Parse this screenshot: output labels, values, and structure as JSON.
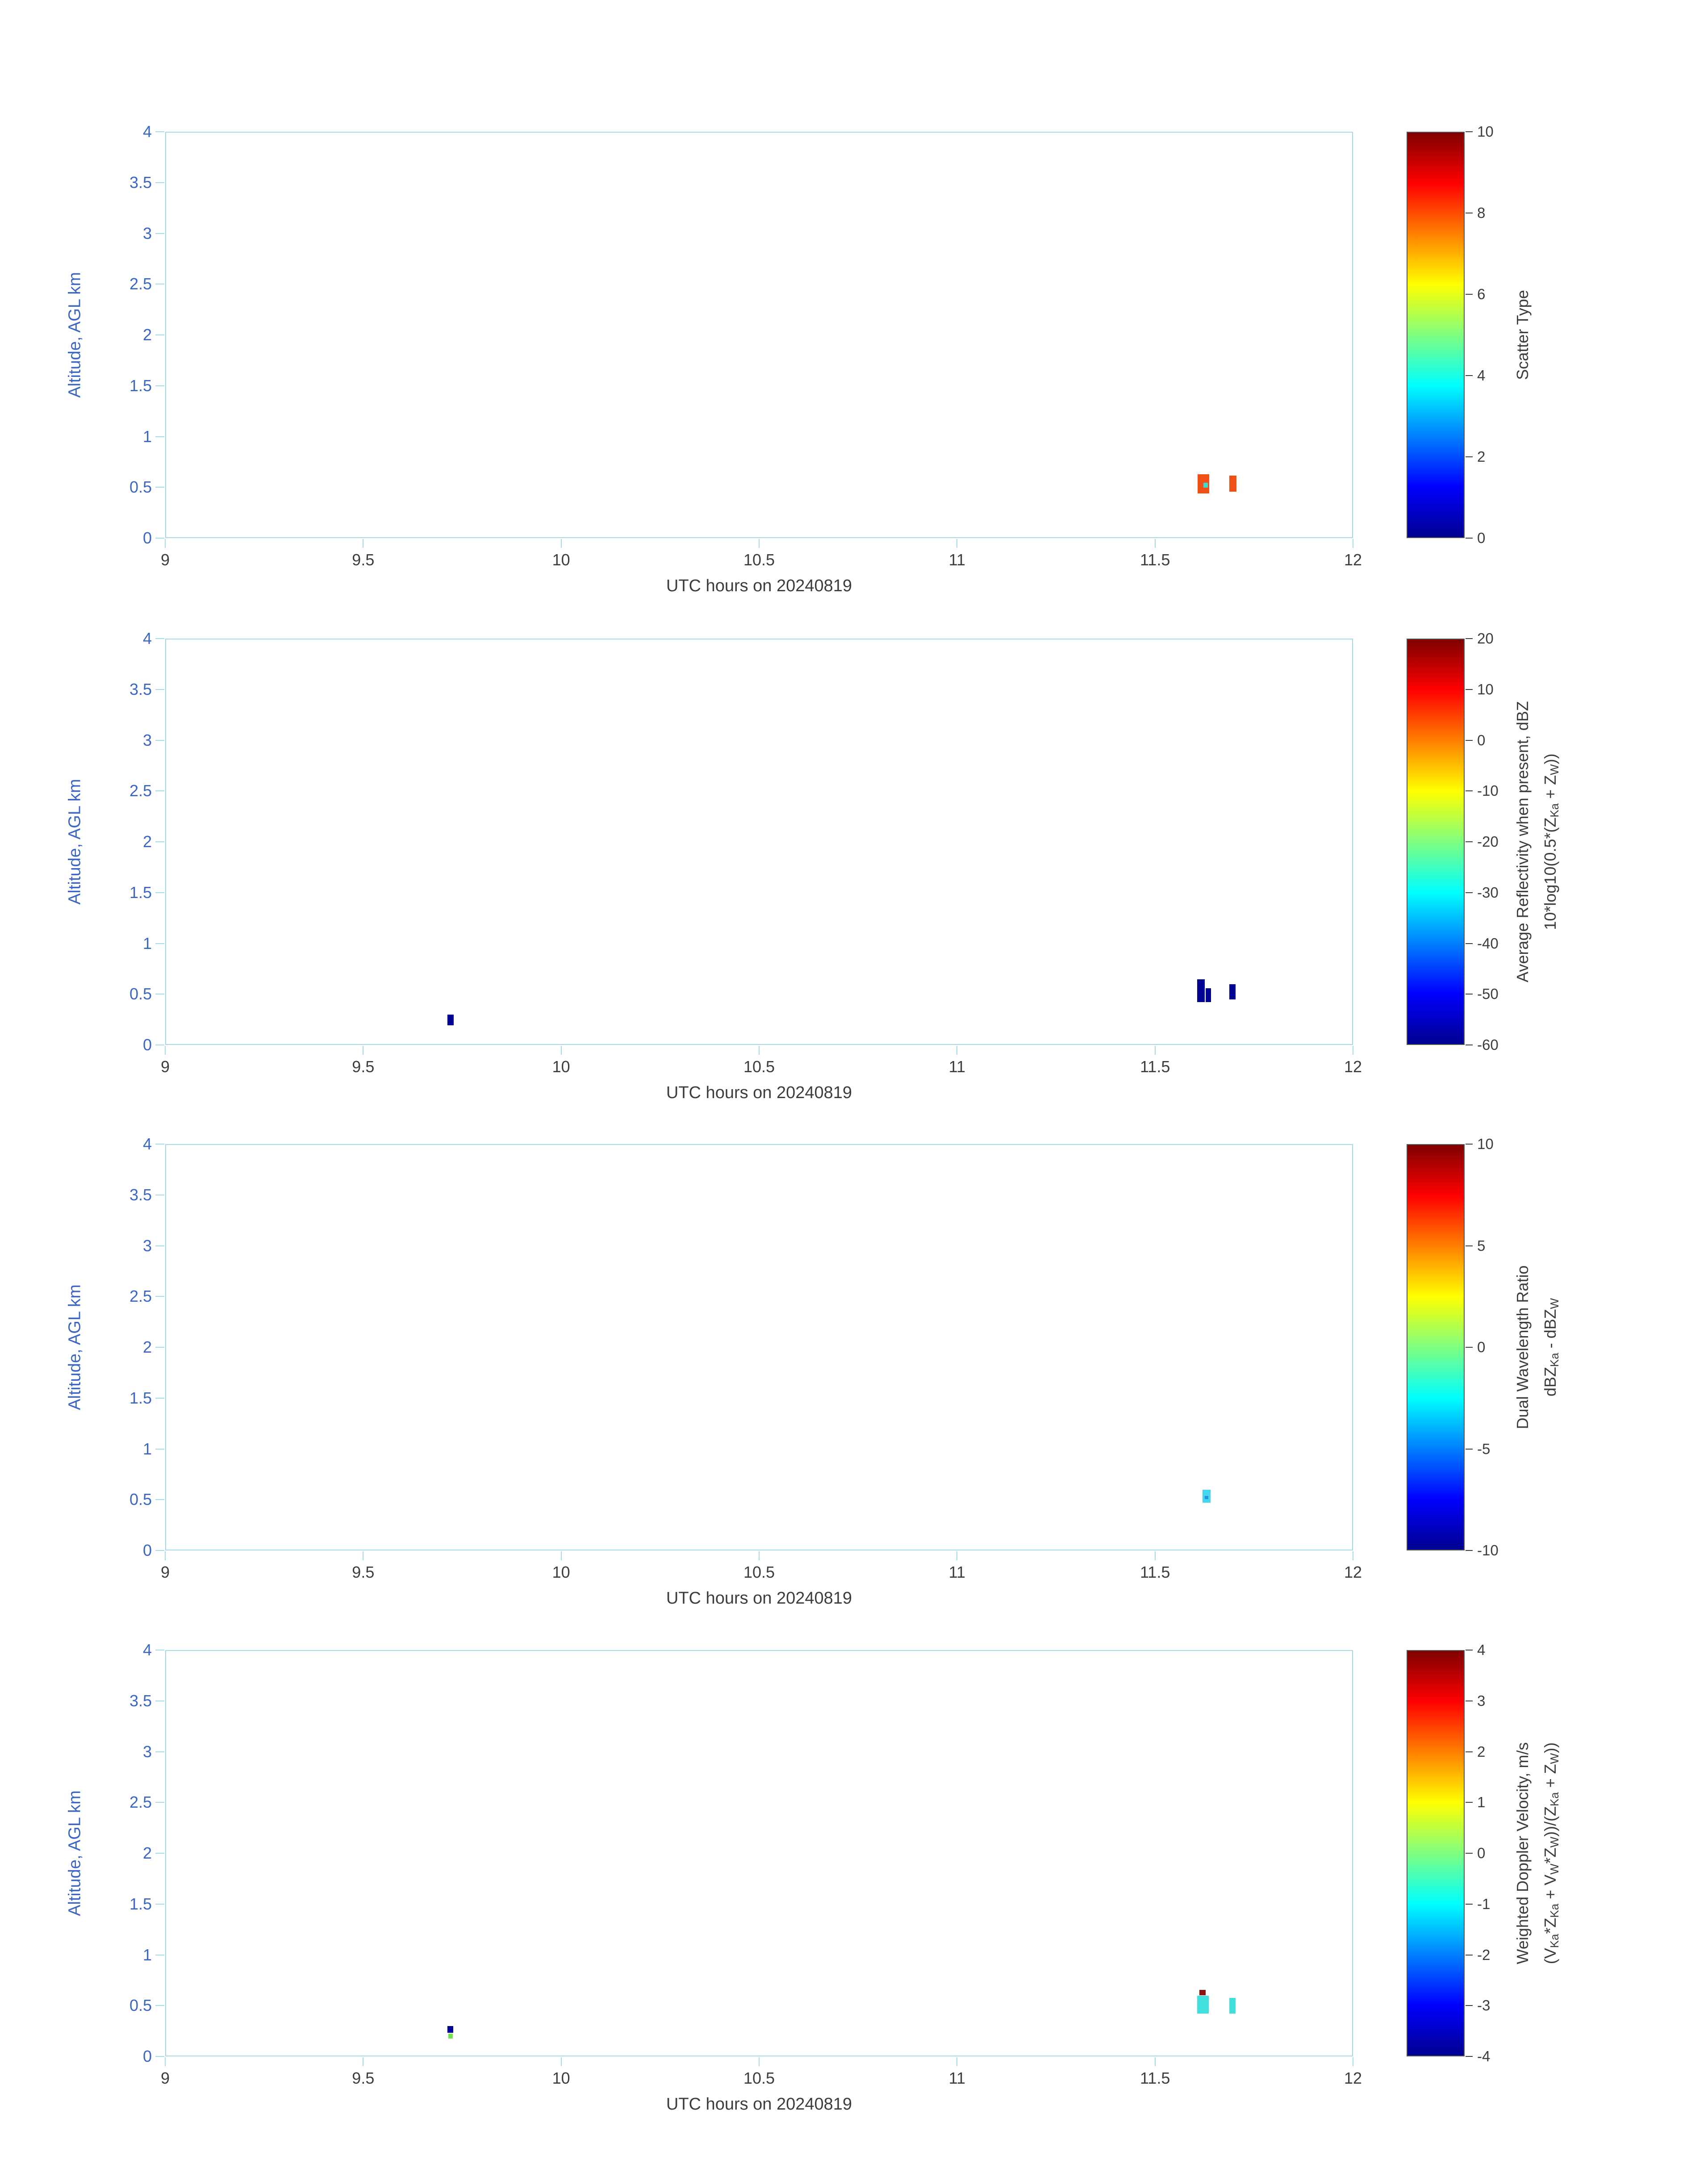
{
  "figure": {
    "colors": {
      "background": "#ffffff",
      "spine": "#a7dae8",
      "y_text": "#3c66c3",
      "x_text": "#3d3d3d",
      "cbar_text": "#3d3d3d",
      "cbar_border": "#555555"
    },
    "colormap": "jet",
    "colormap_stops": [
      {
        "p": 0,
        "c": "#00008f"
      },
      {
        "p": 12.5,
        "c": "#0000ff"
      },
      {
        "p": 37.5,
        "c": "#00ffff"
      },
      {
        "p": 62.5,
        "c": "#ffff00"
      },
      {
        "p": 87.5,
        "c": "#ff0000"
      },
      {
        "p": 100,
        "c": "#800000"
      }
    ]
  },
  "chart_data": [
    {
      "type": "heatmap",
      "title": "",
      "xlabel": "UTC hours on 20240819",
      "ylabel": "Altitude, AGL km",
      "xlim": [
        9,
        12
      ],
      "ylim": [
        0,
        4
      ],
      "xticks": [
        "9",
        "9.5",
        "10",
        "10.5",
        "11",
        "11.5",
        "12"
      ],
      "yticks": [
        "0",
        "0.5",
        "1",
        "1.5",
        "2",
        "2.5",
        "3",
        "3.5",
        "4"
      ],
      "colorbar": {
        "range": [
          0,
          10
        ],
        "ticks": [
          "0",
          "2",
          "4",
          "6",
          "8",
          "10"
        ],
        "label_lines": [
          [
            {
              "t": "Scatter Type"
            }
          ]
        ]
      },
      "marks": [
        {
          "x": 11.607,
          "w": 0.03,
          "y0": 0.44,
          "y1": 0.63,
          "color": "#f04f16"
        },
        {
          "x": 11.622,
          "w": 0.011,
          "y0": 0.498,
          "y1": 0.545,
          "color": "#38ded4"
        },
        {
          "x": 11.688,
          "w": 0.018,
          "y0": 0.455,
          "y1": 0.615,
          "color": "#f04f16"
        }
      ]
    },
    {
      "type": "heatmap",
      "title": "",
      "xlabel": "UTC hours on 20240819",
      "ylabel": "Altitude, AGL km",
      "xlim": [
        9,
        12
      ],
      "ylim": [
        0,
        4
      ],
      "xticks": [
        "9",
        "9.5",
        "10",
        "10.5",
        "11",
        "11.5",
        "12"
      ],
      "yticks": [
        "0",
        "0.5",
        "1",
        "1.5",
        "2",
        "2.5",
        "3",
        "3.5",
        "4"
      ],
      "colorbar": {
        "range": [
          -60,
          20
        ],
        "ticks": [
          "-60",
          "-50",
          "-40",
          "-30",
          "-20",
          "-10",
          "0",
          "10",
          "20"
        ],
        "label_lines": [
          [
            {
              "t": "Average Reflectivity when present, dBZ"
            }
          ],
          [
            {
              "t": "10*log10(0.5*(Z"
            },
            {
              "t": "Ka",
              "sub": true
            },
            {
              "t": " + Z"
            },
            {
              "t": "W",
              "sub": true
            },
            {
              "t": "))"
            }
          ]
        ]
      },
      "marks": [
        {
          "x": 9.713,
          "w": 0.016,
          "y0": 0.195,
          "y1": 0.3,
          "color": "#000091"
        },
        {
          "x": 11.606,
          "w": 0.02,
          "y0": 0.42,
          "y1": 0.645,
          "color": "#000091"
        },
        {
          "x": 11.628,
          "w": 0.013,
          "y0": 0.42,
          "y1": 0.56,
          "color": "#000091"
        },
        {
          "x": 11.688,
          "w": 0.015,
          "y0": 0.45,
          "y1": 0.6,
          "color": "#000091"
        }
      ]
    },
    {
      "type": "heatmap",
      "title": "",
      "xlabel": "UTC hours on 20240819",
      "ylabel": "Altitude, AGL km",
      "xlim": [
        9,
        12
      ],
      "ylim": [
        0,
        4
      ],
      "xticks": [
        "9",
        "9.5",
        "10",
        "10.5",
        "11",
        "11.5",
        "12"
      ],
      "yticks": [
        "0",
        "0.5",
        "1",
        "1.5",
        "2",
        "2.5",
        "3",
        "3.5",
        "4"
      ],
      "colorbar": {
        "range": [
          -10,
          10
        ],
        "ticks": [
          "-10",
          "-5",
          "0",
          "5",
          "10"
        ],
        "label_lines": [
          [
            {
              "t": "Dual Wavelength Ratio"
            }
          ],
          [
            {
              "t": "dBZ"
            },
            {
              "t": "Ka",
              "sub": true
            },
            {
              "t": " - dBZ"
            },
            {
              "t": "W",
              "sub": true
            }
          ]
        ]
      },
      "marks": [
        {
          "x": 11.62,
          "w": 0.02,
          "y0": 0.47,
          "y1": 0.6,
          "color": "#45d7ee"
        },
        {
          "x": 11.625,
          "w": 0.01,
          "y0": 0.505,
          "y1": 0.535,
          "color": "#2b8fe0"
        }
      ]
    },
    {
      "type": "heatmap",
      "title": "",
      "xlabel": "UTC hours on 20240819",
      "ylabel": "Altitude, AGL km",
      "xlim": [
        9,
        12
      ],
      "ylim": [
        0,
        4
      ],
      "xticks": [
        "9",
        "9.5",
        "10",
        "10.5",
        "11",
        "11.5",
        "12"
      ],
      "yticks": [
        "0",
        "0.5",
        "1",
        "1.5",
        "2",
        "2.5",
        "3",
        "3.5",
        "4"
      ],
      "colorbar": {
        "range": [
          -4,
          4
        ],
        "ticks": [
          "-4",
          "-3",
          "-2",
          "-1",
          "0",
          "1",
          "2",
          "3",
          "4"
        ],
        "label_lines": [
          [
            {
              "t": "Weighted Doppler Velocity, m/s"
            }
          ],
          [
            {
              "t": "(V"
            },
            {
              "t": "Ka",
              "sub": true
            },
            {
              "t": "*Z"
            },
            {
              "t": "Ka",
              "sub": true
            },
            {
              "t": " + V"
            },
            {
              "t": "W",
              "sub": true
            },
            {
              "t": "*Z"
            },
            {
              "t": "W",
              "sub": true
            },
            {
              "t": "))/(Z"
            },
            {
              "t": "Ka",
              "sub": true
            },
            {
              "t": " + Z"
            },
            {
              "t": "W",
              "sub": true
            },
            {
              "t": "))"
            }
          ]
        ]
      },
      "marks": [
        {
          "x": 9.713,
          "w": 0.015,
          "y0": 0.235,
          "y1": 0.3,
          "color": "#000091"
        },
        {
          "x": 9.715,
          "w": 0.011,
          "y0": 0.175,
          "y1": 0.225,
          "color": "#74e24e"
        },
        {
          "x": 11.606,
          "w": 0.03,
          "y0": 0.42,
          "y1": 0.6,
          "color": "#41e0dc"
        },
        {
          "x": 11.612,
          "w": 0.016,
          "y0": 0.6,
          "y1": 0.655,
          "color": "#8f1212"
        },
        {
          "x": 11.688,
          "w": 0.015,
          "y0": 0.42,
          "y1": 0.575,
          "color": "#41e0dc"
        }
      ]
    }
  ]
}
